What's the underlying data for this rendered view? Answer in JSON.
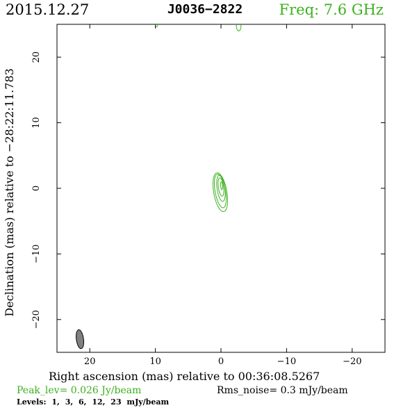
{
  "header": {
    "date": "2015.12.27",
    "source": "J0036−2822",
    "freq": "Freq: 7.6 GHz",
    "freq_color": "#3cb01e"
  },
  "footer": {
    "peak": "Peak_lev=  0.026 Jy/beam",
    "rms": "Rms_noise=   0.3 mJy/beam",
    "levels": "Levels:   1,   3,   6,  12,  23 mJy/beam"
  },
  "chart_data": {
    "type": "contour",
    "xlabel": "Right ascension (mas) relative to 00:36:08.5267",
    "ylabel": "Declination (mas) relative to −28:22:11.783",
    "xlim": [
      25,
      -25
    ],
    "ylim": [
      -25,
      25
    ],
    "xticks": [
      20,
      10,
      0,
      -10,
      -20
    ],
    "yticks": [
      -20,
      -10,
      0,
      10,
      20
    ],
    "xtick_labels": [
      "20",
      "10",
      "0",
      "−10",
      "−20"
    ],
    "ytick_labels": [
      "−20",
      "−10",
      "0",
      "10",
      "20"
    ],
    "contour_color": "#3cb01e",
    "contours": [
      {
        "cx": 0.1,
        "cy": -0.6,
        "rx": 1.0,
        "ry": 3.0,
        "angle": -10
      },
      {
        "cx": 0.1,
        "cy": -0.4,
        "rx": 0.8,
        "ry": 2.6,
        "angle": -10
      },
      {
        "cx": 0.0,
        "cy": 0.0,
        "rx": 0.6,
        "ry": 2.0,
        "angle": -8
      },
      {
        "cx": 0.0,
        "cy": 0.2,
        "rx": 0.4,
        "ry": 1.4,
        "angle": -8
      },
      {
        "cx": -0.1,
        "cy": 0.4,
        "rx": 0.15,
        "ry": 0.6,
        "angle": -5
      }
    ],
    "edge_contours": [
      {
        "cx": -2.7,
        "cy": 24.7,
        "rx": 0.35,
        "ry": 0.7,
        "angle": 0
      },
      {
        "cx": 9.8,
        "cy": 24.9,
        "rx": 0.15,
        "ry": 0.3,
        "angle": 0
      }
    ],
    "beam": {
      "cx": 21.5,
      "cy": -23.0,
      "rx": 0.55,
      "ry": 1.45,
      "angle": -8,
      "color": "#808080"
    }
  }
}
